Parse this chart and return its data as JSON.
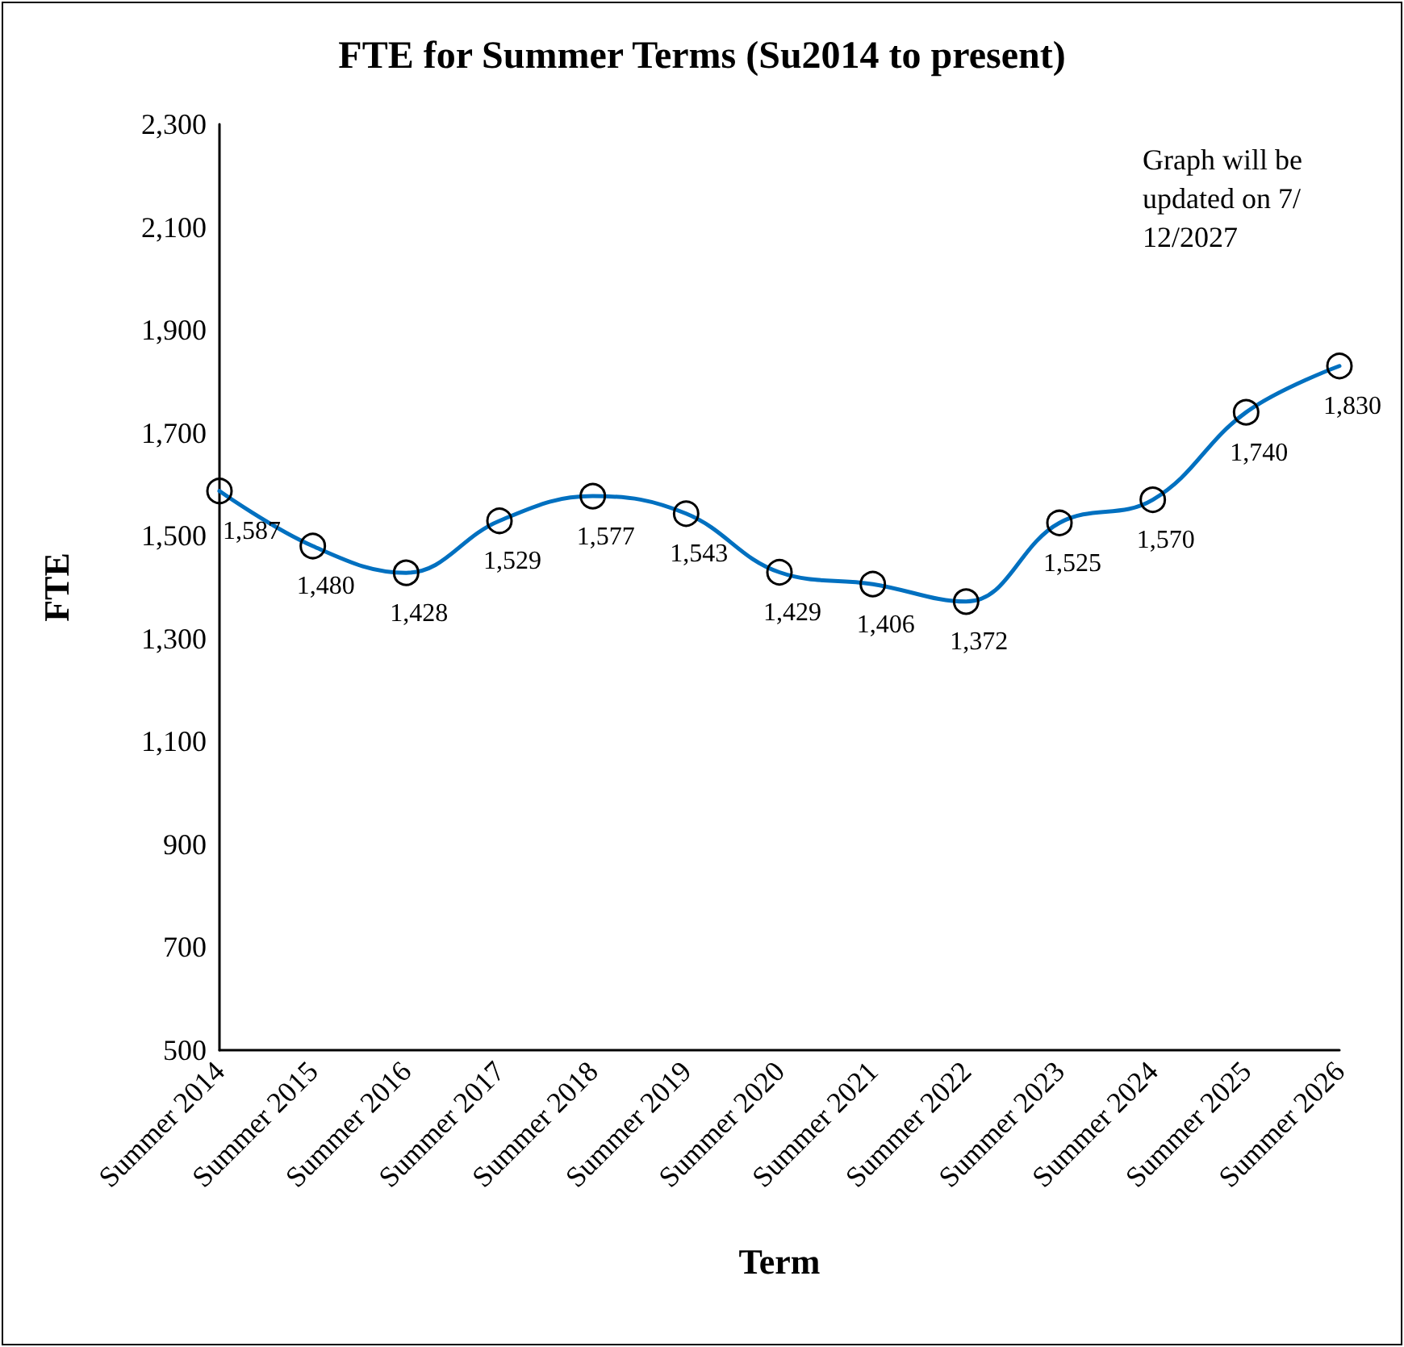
{
  "chart_data": {
    "type": "line",
    "title": "FTE for Summer Terms (Su2014 to present)",
    "xlabel": "Term",
    "ylabel": "FTE",
    "categories": [
      "Summer 2014",
      "Summer 2015",
      "Summer 2016",
      "Summer 2017",
      "Summer 2018",
      "Summer 2019",
      "Summer 2020",
      "Summer 2021",
      "Summer 2022",
      "Summer 2023",
      "Summer 2024",
      "Summer 2025",
      "Summer 2026"
    ],
    "series": [
      {
        "color": "#0070c0",
        "values": [
          1587,
          1480,
          1428,
          1529,
          1577,
          1543,
          1429,
          1406,
          1372,
          1525,
          1570,
          1740,
          1830
        ],
        "value_labels": [
          "1,587",
          "1,480",
          "1,428",
          "1,529",
          "1,577",
          "1,543",
          "1,429",
          "1,406",
          "1,372",
          "1,525",
          "1,570",
          "1,740",
          "1,830"
        ]
      }
    ],
    "ylim": [
      500,
      2300
    ],
    "yticks": [
      {
        "value": 500,
        "label": "500"
      },
      {
        "value": 700,
        "label": "700"
      },
      {
        "value": 900,
        "label": "900"
      },
      {
        "value": 1100,
        "label": "1,100"
      },
      {
        "value": 1300,
        "label": "1,300"
      },
      {
        "value": 1500,
        "label": "1,500"
      },
      {
        "value": 1700,
        "label": "1,700"
      },
      {
        "value": 1900,
        "label": "1,900"
      },
      {
        "value": 2100,
        "label": "2,100"
      },
      {
        "value": 2300,
        "label": "2,300"
      }
    ],
    "grid": false,
    "marker": "circle",
    "line_style": "solid",
    "annotations": [
      "Graph will be updated on 7/12/2027"
    ]
  }
}
